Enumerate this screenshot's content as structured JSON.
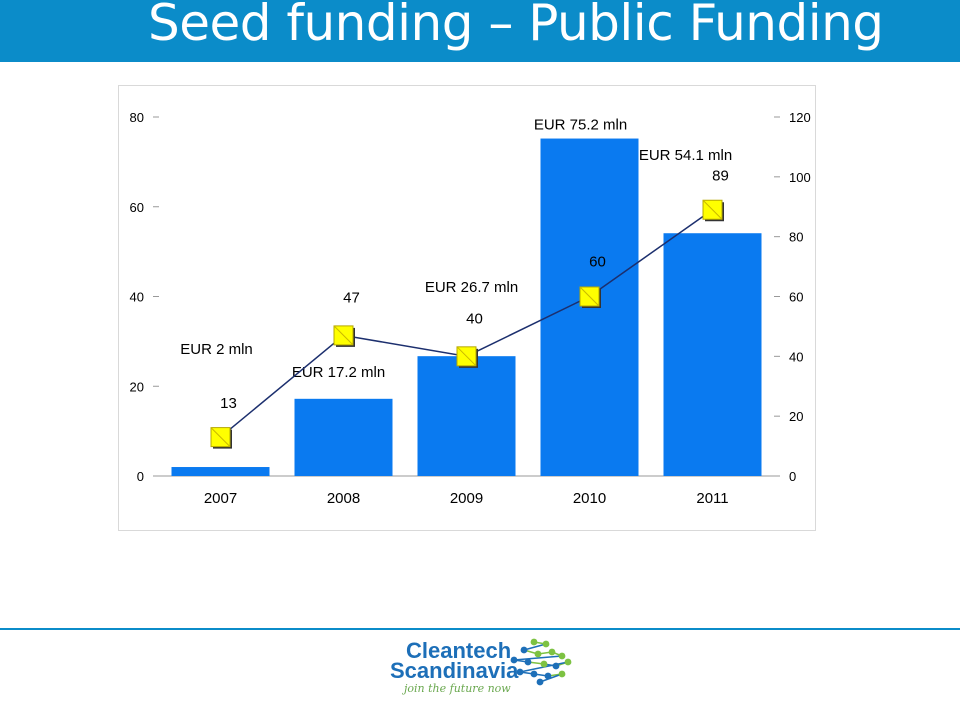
{
  "page": {
    "title": "Seed funding – Public Funding"
  },
  "logo": {
    "line1": "Cleantech",
    "line2": "Scandinavia",
    "tagline": "join the future now"
  },
  "colors": {
    "header": "#0b8cc9",
    "bar": "#0a7af0",
    "marker_fill": "#ffff00",
    "line": "#1c2f6e",
    "logo_blue": "#1d6fb8",
    "logo_green": "#7dc242"
  },
  "chart_data": {
    "type": "bar",
    "categories": [
      "2007",
      "2008",
      "2009",
      "2010",
      "2011"
    ],
    "series": [
      {
        "values": [
          2,
          17.2,
          26.7,
          75.2,
          54.1
        ],
        "axis": "left",
        "kind": "bar",
        "labels": [
          "EUR 2 mln",
          "EUR 17.2 mln",
          "EUR 26.7 mln",
          "EUR 75.2 mln",
          "EUR 54.1 mln"
        ]
      },
      {
        "values": [
          13,
          47,
          40,
          60,
          89
        ],
        "axis": "right",
        "kind": "line",
        "marker": "square",
        "labels": [
          "13",
          "47",
          "40",
          "60",
          "89"
        ]
      }
    ],
    "y_left": {
      "range": [
        0,
        80
      ],
      "ticks": [
        "0",
        "20",
        "40",
        "60",
        "80"
      ]
    },
    "y_right": {
      "range": [
        0,
        120
      ],
      "ticks": [
        "0",
        "20",
        "40",
        "60",
        "80",
        "100",
        "120"
      ]
    },
    "grid": false,
    "legend": "none"
  }
}
